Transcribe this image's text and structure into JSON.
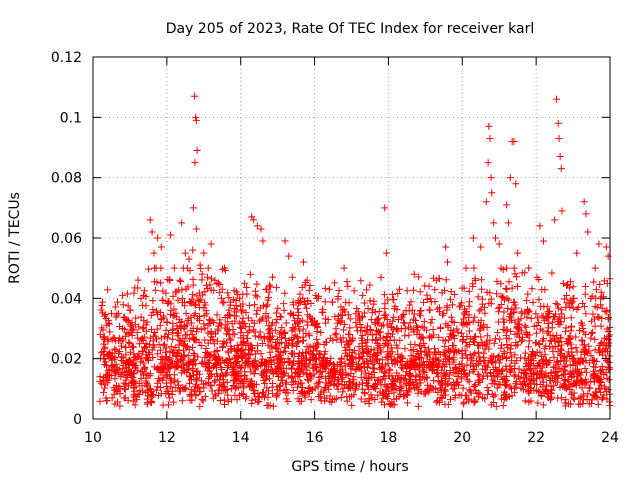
{
  "chart_data": {
    "type": "scatter",
    "title": "Day 205 of 2023, Rate Of TEC Index for receiver karl",
    "xlabel": "GPS time / hours",
    "ylabel": "ROTI / TECUs",
    "xlim": [
      10,
      24
    ],
    "ylim": [
      0,
      0.12
    ],
    "xticks": [
      10,
      12,
      14,
      16,
      18,
      20,
      22,
      24
    ],
    "xtick_labels": [
      "10",
      "12",
      "14",
      "16",
      "18",
      "20",
      "22",
      "24"
    ],
    "yticks": [
      0,
      0.02,
      0.04,
      0.06,
      0.08,
      0.1,
      0.12
    ],
    "ytick_labels": [
      "0",
      "0.02",
      "0.04",
      "0.06",
      "0.08",
      "0.1",
      "0.12"
    ],
    "grid": true,
    "marker": "+",
    "series_color": "#ff0000",
    "series": [
      {
        "name": "ROTI",
        "points": [
          [
            10.2,
            0.028
          ],
          [
            10.5,
            0.035
          ],
          [
            10.8,
            0.041
          ],
          [
            11.0,
            0.036
          ],
          [
            11.3,
            0.04
          ],
          [
            11.55,
            0.066
          ],
          [
            11.6,
            0.062
          ],
          [
            11.65,
            0.055
          ],
          [
            11.75,
            0.06
          ],
          [
            11.85,
            0.057
          ],
          [
            12.1,
            0.061
          ],
          [
            12.2,
            0.05
          ],
          [
            12.35,
            0.046
          ],
          [
            12.4,
            0.065
          ],
          [
            12.5,
            0.055
          ],
          [
            12.6,
            0.053
          ],
          [
            12.7,
            0.056
          ],
          [
            12.75,
            0.107
          ],
          [
            12.78,
            0.1
          ],
          [
            12.8,
            0.099
          ],
          [
            12.82,
            0.089
          ],
          [
            12.76,
            0.085
          ],
          [
            12.72,
            0.07
          ],
          [
            12.8,
            0.063
          ],
          [
            12.9,
            0.051
          ],
          [
            13.0,
            0.055
          ],
          [
            13.1,
            0.047
          ],
          [
            13.2,
            0.058
          ],
          [
            13.3,
            0.046
          ],
          [
            13.5,
            0.043
          ],
          [
            14.1,
            0.045
          ],
          [
            14.3,
            0.067
          ],
          [
            14.35,
            0.066
          ],
          [
            14.45,
            0.064
          ],
          [
            14.55,
            0.063
          ],
          [
            14.6,
            0.059
          ],
          [
            14.7,
            0.043
          ],
          [
            15.2,
            0.059
          ],
          [
            15.3,
            0.054
          ],
          [
            15.4,
            0.047
          ],
          [
            15.7,
            0.052
          ],
          [
            15.8,
            0.046
          ],
          [
            16.1,
            0.04
          ],
          [
            16.4,
            0.043
          ],
          [
            16.8,
            0.05
          ],
          [
            16.9,
            0.044
          ],
          [
            17.3,
            0.041
          ],
          [
            17.9,
            0.07
          ],
          [
            17.95,
            0.055
          ],
          [
            18.3,
            0.043
          ],
          [
            18.7,
            0.048
          ],
          [
            19.1,
            0.044
          ],
          [
            19.3,
            0.046
          ],
          [
            19.55,
            0.057
          ],
          [
            19.6,
            0.052
          ],
          [
            20.1,
            0.05
          ],
          [
            20.3,
            0.06
          ],
          [
            20.5,
            0.057
          ],
          [
            20.65,
            0.072
          ],
          [
            20.7,
            0.085
          ],
          [
            20.72,
            0.097
          ],
          [
            20.75,
            0.093
          ],
          [
            20.78,
            0.08
          ],
          [
            20.8,
            0.075
          ],
          [
            20.85,
            0.065
          ],
          [
            20.9,
            0.06
          ],
          [
            21.0,
            0.058
          ],
          [
            21.2,
            0.071
          ],
          [
            21.25,
            0.065
          ],
          [
            21.3,
            0.08
          ],
          [
            21.35,
            0.092
          ],
          [
            21.4,
            0.092
          ],
          [
            21.45,
            0.078
          ],
          [
            21.5,
            0.055
          ],
          [
            21.8,
            0.05
          ],
          [
            22.1,
            0.064
          ],
          [
            22.2,
            0.059
          ],
          [
            22.5,
            0.066
          ],
          [
            22.55,
            0.106
          ],
          [
            22.6,
            0.098
          ],
          [
            22.62,
            0.093
          ],
          [
            22.65,
            0.087
          ],
          [
            22.68,
            0.083
          ],
          [
            22.7,
            0.069
          ],
          [
            23.1,
            0.055
          ],
          [
            23.3,
            0.072
          ],
          [
            23.35,
            0.068
          ],
          [
            23.4,
            0.062
          ],
          [
            23.7,
            0.058
          ],
          [
            23.9,
            0.057
          ],
          [
            23.95,
            0.054
          ]
        ]
      }
    ]
  }
}
